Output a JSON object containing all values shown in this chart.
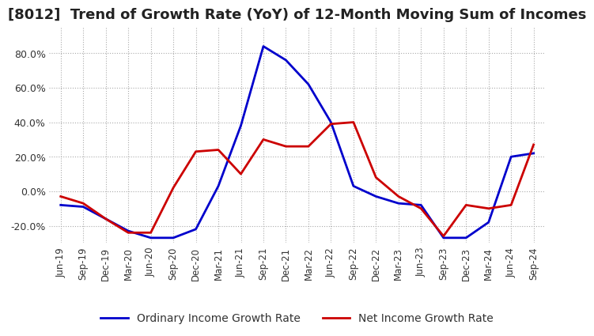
{
  "title": "[8012]  Trend of Growth Rate (YoY) of 12-Month Moving Sum of Incomes",
  "title_fontsize": 13,
  "ylim": [
    -30,
    95
  ],
  "yticks": [
    -20,
    0,
    20,
    40,
    60,
    80
  ],
  "ytick_labels": [
    "-20.0%",
    "0.0%",
    "20.0%",
    "40.0%",
    "60.0%",
    "80.0%"
  ],
  "background_color": "#ffffff",
  "grid_color": "#aaaaaa",
  "line1_color": "#0000cc",
  "line2_color": "#cc0000",
  "line1_label": "Ordinary Income Growth Rate",
  "line2_label": "Net Income Growth Rate",
  "line_width": 2.0,
  "x_labels": [
    "Jun-19",
    "Sep-19",
    "Dec-19",
    "Mar-20",
    "Jun-20",
    "Sep-20",
    "Dec-20",
    "Mar-21",
    "Jun-21",
    "Sep-21",
    "Dec-21",
    "Mar-22",
    "Jun-22",
    "Sep-22",
    "Dec-22",
    "Mar-23",
    "Jun-23",
    "Sep-23",
    "Dec-23",
    "Mar-24",
    "Jun-24",
    "Sep-24"
  ],
  "ordinary_income": [
    -8,
    -9,
    -16,
    -23,
    -27,
    -27,
    -22,
    3,
    38,
    84,
    76,
    62,
    40,
    3,
    -3,
    -7,
    -8,
    -27,
    -27,
    -18,
    20,
    22
  ],
  "net_income": [
    -3,
    -7,
    -16,
    -24,
    -24,
    2,
    23,
    24,
    10,
    30,
    26,
    26,
    39,
    40,
    8,
    -3,
    -10,
    -26,
    -8,
    -10,
    -8,
    27
  ]
}
